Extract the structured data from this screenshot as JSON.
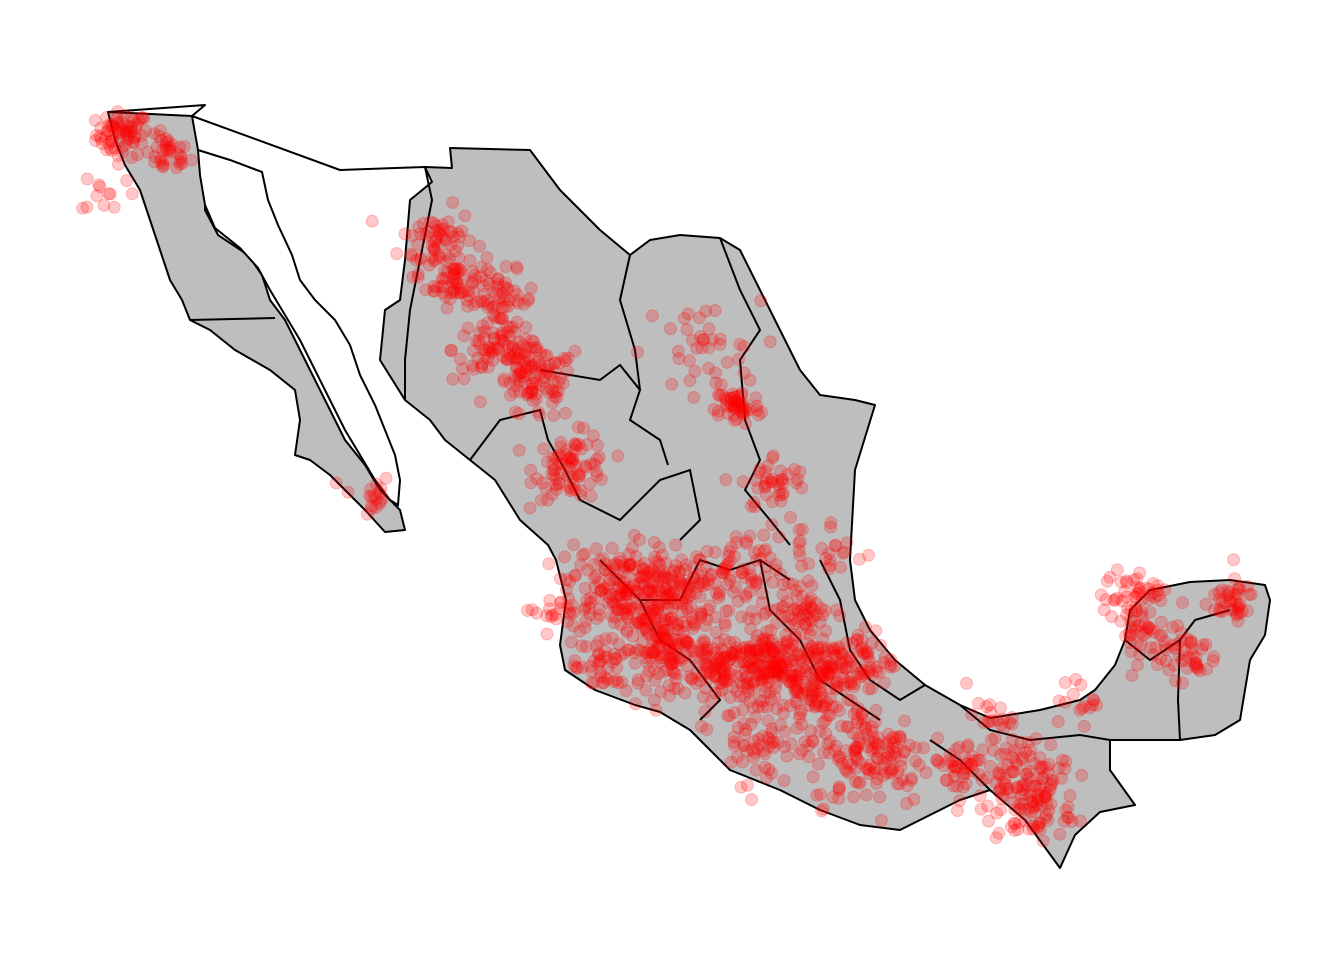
{
  "map": {
    "type": "point-density map",
    "land_fill": "#bebebe",
    "border_color": "#000000",
    "point_color": "#ff0000",
    "point_opacity": 0.22,
    "background": "#ffffff",
    "axes_visible": false,
    "legend_visible": false
  },
  "clusters": [
    {
      "lon": -116.6,
      "lat": 32.4,
      "spread": 0.35,
      "count": 70
    },
    {
      "lon": -115.4,
      "lat": 31.9,
      "spread": 0.3,
      "count": 35
    },
    {
      "lon": -117.0,
      "lat": 31.0,
      "spread": 0.35,
      "count": 12
    },
    {
      "lon": -110.1,
      "lat": 23.5,
      "spread": 0.35,
      "count": 18
    },
    {
      "lon": -108.2,
      "lat": 29.8,
      "spread": 0.5,
      "count": 60
    },
    {
      "lon": -107.7,
      "lat": 28.8,
      "spread": 0.4,
      "count": 60
    },
    {
      "lon": -106.5,
      "lat": 28.3,
      "spread": 0.45,
      "count": 55
    },
    {
      "lon": -106.8,
      "lat": 27.1,
      "spread": 0.5,
      "count": 55
    },
    {
      "lon": -105.6,
      "lat": 26.2,
      "spread": 0.55,
      "count": 70
    },
    {
      "lon": -104.6,
      "lat": 24.2,
      "spread": 0.5,
      "count": 80
    },
    {
      "lon": -105.8,
      "lat": 26.8,
      "spread": 0.4,
      "count": 40
    },
    {
      "lon": -101.2,
      "lat": 27.0,
      "spread": 0.8,
      "count": 40
    },
    {
      "lon": -100.2,
      "lat": 25.7,
      "spread": 0.3,
      "count": 50
    },
    {
      "lon": -99.2,
      "lat": 23.8,
      "spread": 0.45,
      "count": 40
    },
    {
      "lon": -103.4,
      "lat": 21.2,
      "spread": 0.7,
      "count": 170
    },
    {
      "lon": -101.8,
      "lat": 21.1,
      "spread": 0.6,
      "count": 110
    },
    {
      "lon": -102.1,
      "lat": 19.7,
      "spread": 0.6,
      "count": 150
    },
    {
      "lon": -100.4,
      "lat": 19.2,
      "spread": 0.6,
      "count": 120
    },
    {
      "lon": -99.2,
      "lat": 19.3,
      "spread": 0.6,
      "count": 150
    },
    {
      "lon": -98.0,
      "lat": 19.0,
      "spread": 0.6,
      "count": 120
    },
    {
      "lon": -100.3,
      "lat": 21.5,
      "spread": 0.6,
      "count": 70
    },
    {
      "lon": -98.6,
      "lat": 20.7,
      "spread": 0.5,
      "count": 60
    },
    {
      "lon": -97.0,
      "lat": 19.4,
      "spread": 0.5,
      "count": 60
    },
    {
      "lon": -96.6,
      "lat": 17.1,
      "spread": 0.8,
      "count": 140
    },
    {
      "lon": -99.4,
      "lat": 17.5,
      "spread": 0.7,
      "count": 70
    },
    {
      "lon": -94.3,
      "lat": 16.8,
      "spread": 0.4,
      "count": 40
    },
    {
      "lon": -92.6,
      "lat": 16.6,
      "spread": 0.6,
      "count": 90
    },
    {
      "lon": -92.3,
      "lat": 15.7,
      "spread": 0.5,
      "count": 60
    },
    {
      "lon": -93.5,
      "lat": 18.0,
      "spread": 0.3,
      "count": 20
    },
    {
      "lon": -91.0,
      "lat": 18.4,
      "spread": 0.3,
      "count": 15
    },
    {
      "lon": -89.6,
      "lat": 21.0,
      "spread": 0.45,
      "count": 50
    },
    {
      "lon": -89.6,
      "lat": 20.0,
      "spread": 0.4,
      "count": 35
    },
    {
      "lon": -88.2,
      "lat": 19.6,
      "spread": 0.4,
      "count": 40
    },
    {
      "lon": -87.1,
      "lat": 20.9,
      "spread": 0.35,
      "count": 40
    },
    {
      "lon": -103.8,
      "lat": 19.2,
      "spread": 0.4,
      "count": 40
    },
    {
      "lon": -105.1,
      "lat": 20.7,
      "spread": 0.35,
      "count": 20
    },
    {
      "lon": -97.8,
      "lat": 22.2,
      "spread": 0.5,
      "count": 25
    }
  ]
}
